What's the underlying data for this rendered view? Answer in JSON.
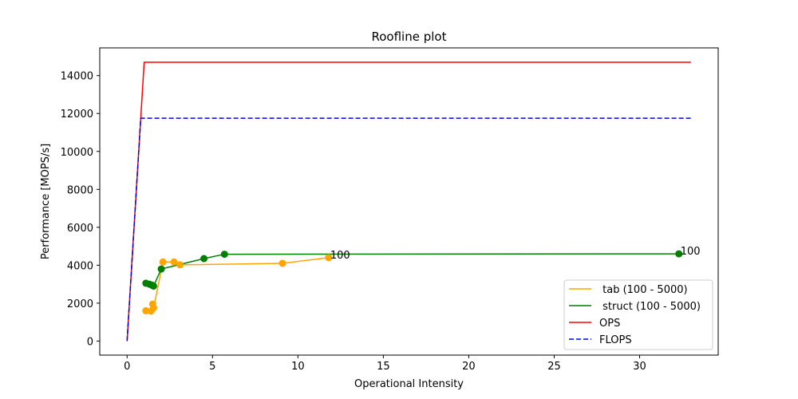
{
  "chart_data": {
    "type": "line",
    "title": "Roofline plot",
    "xlabel": "Operational Intensity",
    "ylabel": "Performance [MOPS/s]",
    "xlim": [
      -1.6,
      34.6
    ],
    "ylim": [
      -740,
      15460
    ],
    "xticks": [
      0,
      5,
      10,
      15,
      20,
      25,
      30
    ],
    "yticks": [
      0,
      2000,
      4000,
      6000,
      8000,
      10000,
      12000,
      14000
    ],
    "grid": false,
    "legend_position": "lower right",
    "series": [
      {
        "name": " tab (100 - 5000)",
        "color": "#ffa500",
        "style": "solid",
        "marker": "circle",
        "points": [
          [
            1.1,
            1600
          ],
          [
            1.4,
            1580
          ],
          [
            1.5,
            1950
          ],
          [
            1.55,
            1750
          ],
          [
            2.1,
            4170
          ],
          [
            2.75,
            4170
          ],
          [
            3.1,
            4020
          ],
          [
            9.1,
            4100
          ],
          [
            11.8,
            4400
          ]
        ]
      },
      {
        "name": " struct (100 - 5000)",
        "color": "#008000",
        "style": "solid",
        "marker": "circle",
        "points": [
          [
            1.1,
            3050
          ],
          [
            1.3,
            3000
          ],
          [
            1.45,
            2950
          ],
          [
            1.55,
            2900
          ],
          [
            2.0,
            3800
          ],
          [
            4.5,
            4350
          ],
          [
            5.7,
            4580
          ],
          [
            32.3,
            4600
          ]
        ]
      },
      {
        "name": "OPS",
        "color": "#ff0000",
        "style": "solid",
        "marker": "none",
        "points": [
          [
            0,
            0
          ],
          [
            1.0,
            14700
          ],
          [
            33,
            14700
          ]
        ]
      },
      {
        "name": "FLOPS",
        "color": "#0000ff",
        "style": "dashed",
        "marker": "none",
        "points": [
          [
            0,
            0
          ],
          [
            0.8,
            11750
          ],
          [
            33,
            11750
          ]
        ]
      }
    ],
    "annotations": [
      {
        "text": "100",
        "x": 11.8,
        "y": 4400,
        "color": "#000000"
      },
      {
        "text": "100",
        "x": 32.3,
        "y": 4600,
        "color": "#000000"
      }
    ]
  }
}
